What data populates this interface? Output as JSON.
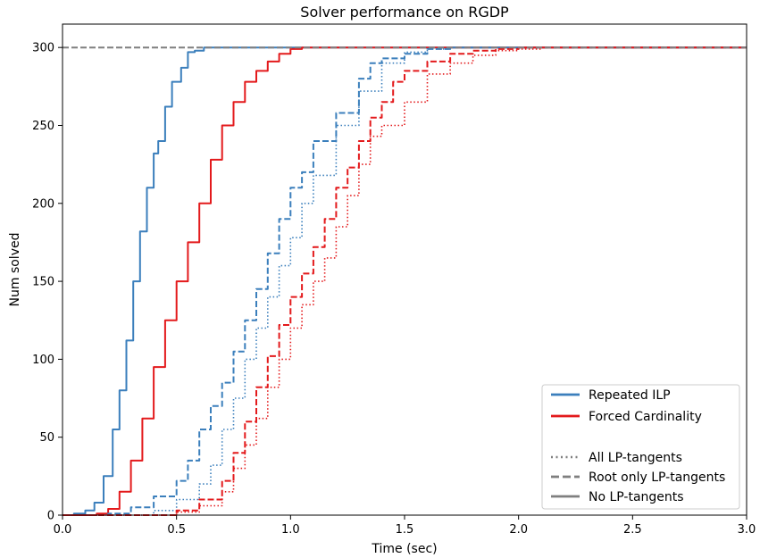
{
  "chart_data": {
    "type": "line",
    "title": "Solver performance on RGDP",
    "xlabel": "Time (sec)",
    "ylabel": "Num solved",
    "xlim": [
      0.0,
      3.0
    ],
    "ylim": [
      0,
      315
    ],
    "x_ticks": [
      "0.0",
      "0.5",
      "1.0",
      "1.5",
      "2.0",
      "2.5",
      "3.0"
    ],
    "y_ticks": [
      "0",
      "50",
      "100",
      "150",
      "200",
      "250",
      "300"
    ],
    "grid": false,
    "legend_position": "lower-right",
    "colors": {
      "blue": "#3b7fbc",
      "red": "#e31a1c",
      "gray": "#7f7f7f"
    },
    "reference_line": {
      "y": 300,
      "style": "dashed",
      "color": "#7f7f7f"
    },
    "legend": [
      {
        "label": "Repeated ILP",
        "color": "#3b7fbc",
        "style": "solid"
      },
      {
        "label": "Forced Cardinality",
        "color": "#e31a1c",
        "style": "solid"
      },
      {
        "label": "",
        "color": "",
        "style": "spacer"
      },
      {
        "label": "All LP-tangents",
        "color": "#7f7f7f",
        "style": "dotted"
      },
      {
        "label": "Root only LP-tangents",
        "color": "#7f7f7f",
        "style": "dashed"
      },
      {
        "label": "No LP-tangents",
        "color": "#7f7f7f",
        "style": "solid"
      }
    ],
    "series": [
      {
        "name": "Repeated ILP",
        "color": "#3b7fbc",
        "style": "solid",
        "x": [
          0.0,
          0.05,
          0.1,
          0.14,
          0.18,
          0.22,
          0.25,
          0.28,
          0.31,
          0.34,
          0.37,
          0.4,
          0.42,
          0.45,
          0.48,
          0.52,
          0.55,
          0.58,
          0.62,
          0.65,
          3.0
        ],
        "y": [
          0,
          1,
          3,
          8,
          25,
          55,
          80,
          112,
          150,
          182,
          210,
          232,
          240,
          262,
          278,
          287,
          297,
          298,
          300,
          300,
          300
        ]
      },
      {
        "name": "Forced Cardinality",
        "color": "#e31a1c",
        "style": "solid",
        "x": [
          0.0,
          0.1,
          0.15,
          0.2,
          0.25,
          0.3,
          0.35,
          0.4,
          0.45,
          0.5,
          0.55,
          0.6,
          0.65,
          0.7,
          0.75,
          0.8,
          0.85,
          0.9,
          0.95,
          1.0,
          1.05,
          3.0
        ],
        "y": [
          0,
          0,
          1,
          4,
          15,
          35,
          62,
          95,
          125,
          150,
          175,
          200,
          228,
          250,
          265,
          278,
          285,
          291,
          296,
          299,
          300,
          300
        ]
      },
      {
        "name": "Repeated ILP, All LP-tangents",
        "color": "#3b7fbc",
        "style": "dotted",
        "x": [
          0.0,
          0.3,
          0.4,
          0.5,
          0.6,
          0.65,
          0.7,
          0.75,
          0.8,
          0.85,
          0.9,
          0.95,
          1.0,
          1.05,
          1.1,
          1.2,
          1.3,
          1.4,
          1.5,
          1.6,
          1.7,
          1.8,
          3.0
        ],
        "y": [
          0,
          0,
          3,
          10,
          20,
          32,
          55,
          75,
          100,
          120,
          140,
          160,
          178,
          200,
          218,
          250,
          272,
          290,
          297,
          299,
          300,
          300,
          300
        ]
      },
      {
        "name": "Repeated ILP, Root only LP-tangents",
        "color": "#3b7fbc",
        "style": "dashed",
        "x": [
          0.0,
          0.2,
          0.3,
          0.4,
          0.5,
          0.55,
          0.6,
          0.65,
          0.7,
          0.75,
          0.8,
          0.85,
          0.9,
          0.95,
          1.0,
          1.05,
          1.1,
          1.2,
          1.3,
          1.35,
          1.4,
          1.5,
          1.6,
          1.7,
          3.0
        ],
        "y": [
          0,
          1,
          5,
          12,
          22,
          35,
          55,
          70,
          85,
          105,
          125,
          145,
          168,
          190,
          210,
          220,
          240,
          258,
          280,
          290,
          293,
          296,
          299,
          300,
          300
        ]
      },
      {
        "name": "Forced Cardinality, All LP-tangents",
        "color": "#e31a1c",
        "style": "dotted",
        "x": [
          0.0,
          0.4,
          0.5,
          0.6,
          0.7,
          0.75,
          0.8,
          0.85,
          0.9,
          0.95,
          1.0,
          1.05,
          1.1,
          1.15,
          1.2,
          1.25,
          1.3,
          1.35,
          1.4,
          1.5,
          1.6,
          1.7,
          1.8,
          1.9,
          2.0,
          2.1,
          3.0
        ],
        "y": [
          0,
          0,
          2,
          6,
          15,
          30,
          45,
          62,
          82,
          100,
          120,
          135,
          150,
          165,
          185,
          205,
          225,
          243,
          250,
          265,
          283,
          290,
          295,
          298,
          299,
          300,
          300
        ]
      },
      {
        "name": "Forced Cardinality, Root only LP-tangents",
        "color": "#e31a1c",
        "style": "dashed",
        "x": [
          0.0,
          0.45,
          0.5,
          0.6,
          0.7,
          0.75,
          0.8,
          0.85,
          0.9,
          0.95,
          1.0,
          1.05,
          1.1,
          1.15,
          1.2,
          1.25,
          1.3,
          1.35,
          1.4,
          1.45,
          1.5,
          1.6,
          1.7,
          1.8,
          1.9,
          2.0,
          3.0
        ],
        "y": [
          0,
          0,
          3,
          10,
          22,
          40,
          60,
          82,
          102,
          122,
          140,
          155,
          172,
          190,
          210,
          223,
          240,
          255,
          265,
          278,
          285,
          291,
          296,
          298,
          299,
          300,
          300
        ]
      }
    ]
  }
}
